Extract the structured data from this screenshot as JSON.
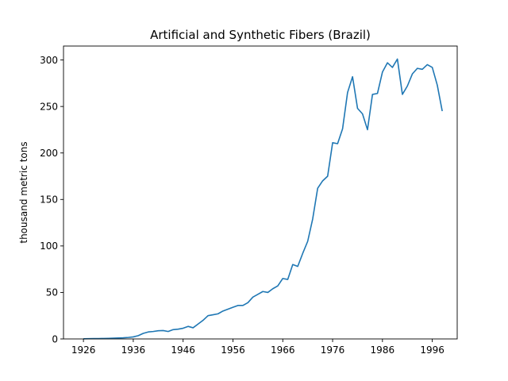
{
  "chart_data": {
    "type": "line",
    "title": "Artificial and Synthetic Fibers (Brazil)",
    "xlabel": "",
    "ylabel": "thousand metric tons",
    "xlim": [
      1922,
      2001
    ],
    "ylim": [
      0,
      315
    ],
    "xticks": [
      1926,
      1936,
      1946,
      1956,
      1966,
      1976,
      1986,
      1996
    ],
    "yticks": [
      0,
      50,
      100,
      150,
      200,
      250,
      300
    ],
    "grid": false,
    "legend": "none",
    "colors": {
      "line": "#1f77b4",
      "axes": "#000000",
      "background": "#ffffff"
    },
    "series": [
      {
        "x": [
          1926,
          1927,
          1928,
          1929,
          1930,
          1931,
          1932,
          1933,
          1934,
          1935,
          1936,
          1937,
          1938,
          1939,
          1940,
          1941,
          1942,
          1943,
          1944,
          1945,
          1946,
          1947,
          1948,
          1949,
          1950,
          1951,
          1952,
          1953,
          1954,
          1955,
          1956,
          1957,
          1958,
          1959,
          1960,
          1961,
          1962,
          1963,
          1964,
          1965,
          1966,
          1967,
          1968,
          1969,
          1970,
          1971,
          1972,
          1973,
          1974,
          1975,
          1976,
          1977,
          1978,
          1979,
          1980,
          1981,
          1982,
          1983,
          1984,
          1985,
          1986,
          1987,
          1988,
          1989,
          1990,
          1991,
          1992,
          1993,
          1994,
          1995,
          1996,
          1997,
          1998
        ],
        "y": [
          0.2,
          0.3,
          0.4,
          0.4,
          0.5,
          0.6,
          0.8,
          1.0,
          1.2,
          1.6,
          2.2,
          3.5,
          6.0,
          7.5,
          8.0,
          8.8,
          9.0,
          8.0,
          10.0,
          10.5,
          11.5,
          13.5,
          12.0,
          16.0,
          20.0,
          25.0,
          26.0,
          27.0,
          30.0,
          32.0,
          34.0,
          36.0,
          36.0,
          39.0,
          45.0,
          48.0,
          51.0,
          50.0,
          54.0,
          57.0,
          65.0,
          64.0,
          80.0,
          78.0,
          92.0,
          105.0,
          129.0,
          162.0,
          170.0,
          175.0,
          211.0,
          210.0,
          226.0,
          265.0,
          282.0,
          248.0,
          242.0,
          225.0,
          263.0,
          264.0,
          287.0,
          297.0,
          292.0,
          301.0,
          263.0,
          272.0,
          285.0,
          291.0,
          290.0,
          295.0,
          292.0,
          273.0,
          245.0
        ]
      }
    ]
  }
}
